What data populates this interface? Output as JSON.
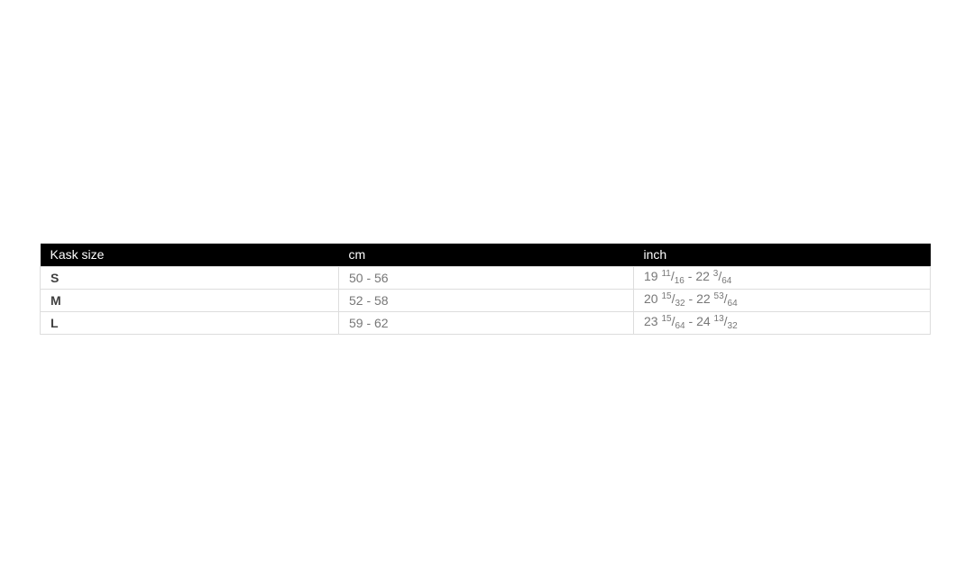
{
  "page": {
    "background": "#ffffff"
  },
  "colors": {
    "header_bg": "#000000",
    "header_text": "#ffffff",
    "size_label_text": "#3f3f3f",
    "value_text": "#777777",
    "border": "#dddddd"
  },
  "table": {
    "name": "helmet-size-chart",
    "columns": [
      {
        "key": "size",
        "label": "Kask size"
      },
      {
        "key": "cm",
        "label": "cm"
      },
      {
        "key": "inch",
        "label": "inch"
      }
    ],
    "rows": [
      {
        "size": "S",
        "cm": "50 - 56",
        "inch_text": "19 11/16 - 22 3/64",
        "inch": {
          "from": {
            "whole": "19",
            "num": "11",
            "den": "16"
          },
          "separator": "-",
          "to": {
            "whole": "22",
            "num": "3",
            "den": "64"
          }
        }
      },
      {
        "size": "M",
        "cm": "52 - 58",
        "inch_text": "20 15/32 - 22 53/64",
        "inch": {
          "from": {
            "whole": "20",
            "num": "15",
            "den": "32"
          },
          "separator": "-",
          "to": {
            "whole": "22",
            "num": "53",
            "den": "64"
          }
        }
      },
      {
        "size": "L",
        "cm": "59 - 62",
        "inch_text": "23 15/64 - 24 13/32",
        "inch": {
          "from": {
            "whole": "23",
            "num": "15",
            "den": "64"
          },
          "separator": "-",
          "to": {
            "whole": "24",
            "num": "13",
            "den": "32"
          }
        }
      }
    ]
  },
  "chart_data": {
    "type": "table",
    "title": "",
    "columns": [
      "Kask size",
      "cm",
      "inch"
    ],
    "rows": [
      [
        "S",
        "50 - 56",
        "19 11/16 - 22 3/64"
      ],
      [
        "M",
        "52 - 58",
        "20 15/32 - 22 53/64"
      ],
      [
        "L",
        "59 - 62",
        "23 15/64 - 24 13/32"
      ]
    ]
  }
}
